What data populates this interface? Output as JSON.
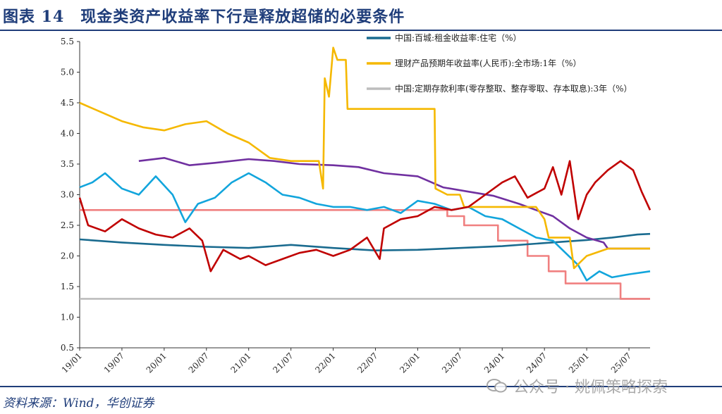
{
  "title": "图表 14　现金类资产收益率下行是释放超储的必要条件",
  "source": "资料来源：Wind，华创证券",
  "watermark": "公众号 · 姚佩策略探索",
  "chart_data": {
    "type": "line",
    "ylim": [
      0.5,
      5.5
    ],
    "yticks": [
      "0.5",
      "1.0",
      "1.5",
      "2.0",
      "2.5",
      "3.0",
      "3.5",
      "4.0",
      "4.5",
      "5.0",
      "5.5"
    ],
    "xticks": [
      "19/01",
      "19/07",
      "20/01",
      "20/07",
      "21/01",
      "21/07",
      "22/01",
      "22/07",
      "23/01",
      "23/07",
      "24/01",
      "24/07",
      "25/01",
      "25/07"
    ],
    "legend_placement": "top-right, inside",
    "grid": false,
    "series": [
      {
        "name": "中国:百城:租金收益率:住宅（%）",
        "color": "#1a6b8f",
        "x": [
          2019.0,
          2019.5,
          2020.0,
          2020.5,
          2021.0,
          2021.5,
          2022.0,
          2022.5,
          2023.0,
          2023.5,
          2024.0,
          2024.5,
          2025.0,
          2025.3,
          2025.6,
          2025.75
        ],
        "y": [
          2.27,
          2.22,
          2.18,
          2.15,
          2.13,
          2.18,
          2.13,
          2.09,
          2.1,
          2.13,
          2.16,
          2.21,
          2.26,
          2.3,
          2.35,
          2.36
        ]
      },
      {
        "name": "理财产品预期年收益率(人民币):全市场:1年（%）",
        "color": "#f5b800",
        "x": [
          2019.0,
          2019.25,
          2019.5,
          2019.75,
          2020.0,
          2020.25,
          2020.5,
          2020.75,
          2021.0,
          2021.25,
          2021.5,
          2021.75,
          2021.83,
          2021.88,
          2021.9,
          2021.95,
          2022.0,
          2022.05,
          2022.15,
          2022.17,
          2022.5,
          2022.9,
          2023.0,
          2023.2,
          2023.21,
          2023.35,
          2023.5,
          2023.55,
          2023.9,
          2024.0,
          2024.2,
          2024.4,
          2024.5,
          2024.55,
          2024.8,
          2024.85,
          2025.0,
          2025.25,
          2025.75
        ],
        "y": [
          4.5,
          4.35,
          4.2,
          4.1,
          4.05,
          4.15,
          4.2,
          4.0,
          3.85,
          3.6,
          3.55,
          3.55,
          3.55,
          3.1,
          4.9,
          4.6,
          5.4,
          5.2,
          5.2,
          4.4,
          4.4,
          4.4,
          4.4,
          4.4,
          3.1,
          3.0,
          3.0,
          2.8,
          2.8,
          2.8,
          2.8,
          2.8,
          2.6,
          2.3,
          2.3,
          1.8,
          2.0,
          2.12,
          2.12
        ]
      },
      {
        "name": "中国:定期存款利率(零存整取、整存零取、存本取息):3年（%）",
        "color": "#bdbdbd",
        "x": [
          2019.0,
          2025.75
        ],
        "y": [
          1.3,
          1.3
        ]
      },
      {
        "name": "",
        "color": "#12a5dc",
        "x": [
          2019.0,
          2019.15,
          2019.3,
          2019.5,
          2019.7,
          2019.9,
          2020.1,
          2020.25,
          2020.4,
          2020.6,
          2020.8,
          2021.0,
          2021.2,
          2021.4,
          2021.6,
          2021.8,
          2022.0,
          2022.2,
          2022.4,
          2022.6,
          2022.8,
          2023.0,
          2023.2,
          2023.4,
          2023.6,
          2023.8,
          2024.0,
          2024.2,
          2024.4,
          2024.6,
          2024.75,
          2024.9,
          2025.0,
          2025.15,
          2025.3,
          2025.5,
          2025.75
        ],
        "y": [
          3.12,
          3.2,
          3.35,
          3.1,
          3.0,
          3.3,
          3.0,
          2.55,
          2.85,
          2.95,
          3.2,
          3.35,
          3.2,
          3.0,
          2.95,
          2.85,
          2.8,
          2.8,
          2.75,
          2.8,
          2.7,
          2.9,
          2.85,
          2.75,
          2.8,
          2.65,
          2.6,
          2.45,
          2.3,
          2.25,
          2.05,
          1.85,
          1.6,
          1.75,
          1.65,
          1.7,
          1.75
        ]
      },
      {
        "name": "",
        "color": "#7030a0",
        "x": [
          2019.7,
          2020.0,
          2020.3,
          2020.6,
          2021.0,
          2021.3,
          2021.6,
          2022.0,
          2022.3,
          2022.6,
          2023.0,
          2023.3,
          2023.6,
          2023.9,
          2024.2,
          2024.4,
          2024.6,
          2024.8,
          2025.0,
          2025.2,
          2025.25,
          2025.75
        ],
        "y": [
          3.55,
          3.6,
          3.48,
          3.52,
          3.58,
          3.55,
          3.5,
          3.48,
          3.45,
          3.35,
          3.3,
          3.12,
          3.05,
          2.98,
          2.85,
          2.75,
          2.65,
          2.45,
          2.3,
          2.22,
          2.12,
          2.12
        ]
      },
      {
        "name": "",
        "color": "#c00000",
        "x": [
          2019.0,
          2019.1,
          2019.3,
          2019.5,
          2019.7,
          2019.9,
          2020.1,
          2020.3,
          2020.45,
          2020.55,
          2020.7,
          2020.9,
          2021.0,
          2021.2,
          2021.4,
          2021.6,
          2021.8,
          2022.0,
          2022.2,
          2022.4,
          2022.55,
          2022.6,
          2022.8,
          2023.0,
          2023.2,
          2023.4,
          2023.6,
          2023.8,
          2024.0,
          2024.15,
          2024.3,
          2024.5,
          2024.6,
          2024.7,
          2024.8,
          2024.9,
          2025.0,
          2025.1,
          2025.25,
          2025.4,
          2025.55,
          2025.65,
          2025.75
        ],
        "y": [
          2.95,
          2.5,
          2.4,
          2.6,
          2.45,
          2.35,
          2.3,
          2.45,
          2.25,
          1.75,
          2.1,
          1.95,
          2.0,
          1.85,
          1.95,
          2.05,
          2.1,
          2.0,
          2.1,
          2.3,
          1.95,
          2.45,
          2.6,
          2.65,
          2.8,
          2.75,
          2.8,
          3.0,
          3.2,
          3.3,
          2.95,
          3.1,
          3.45,
          3.0,
          3.55,
          2.6,
          3.0,
          3.2,
          3.4,
          3.55,
          3.4,
          3.05,
          2.75
        ]
      },
      {
        "name": "",
        "color": "#f08080",
        "x": [
          2019.0,
          2022.4,
          2022.4,
          2023.35,
          2023.35,
          2023.55,
          2023.55,
          2023.95,
          2023.95,
          2024.3,
          2024.3,
          2024.55,
          2024.55,
          2024.75,
          2024.75,
          2025.4,
          2025.4,
          2025.75
        ],
        "y": [
          2.75,
          2.75,
          2.75,
          2.75,
          2.65,
          2.65,
          2.5,
          2.5,
          2.25,
          2.25,
          2.0,
          2.0,
          1.75,
          1.75,
          1.55,
          1.55,
          1.3,
          1.3
        ]
      }
    ]
  }
}
